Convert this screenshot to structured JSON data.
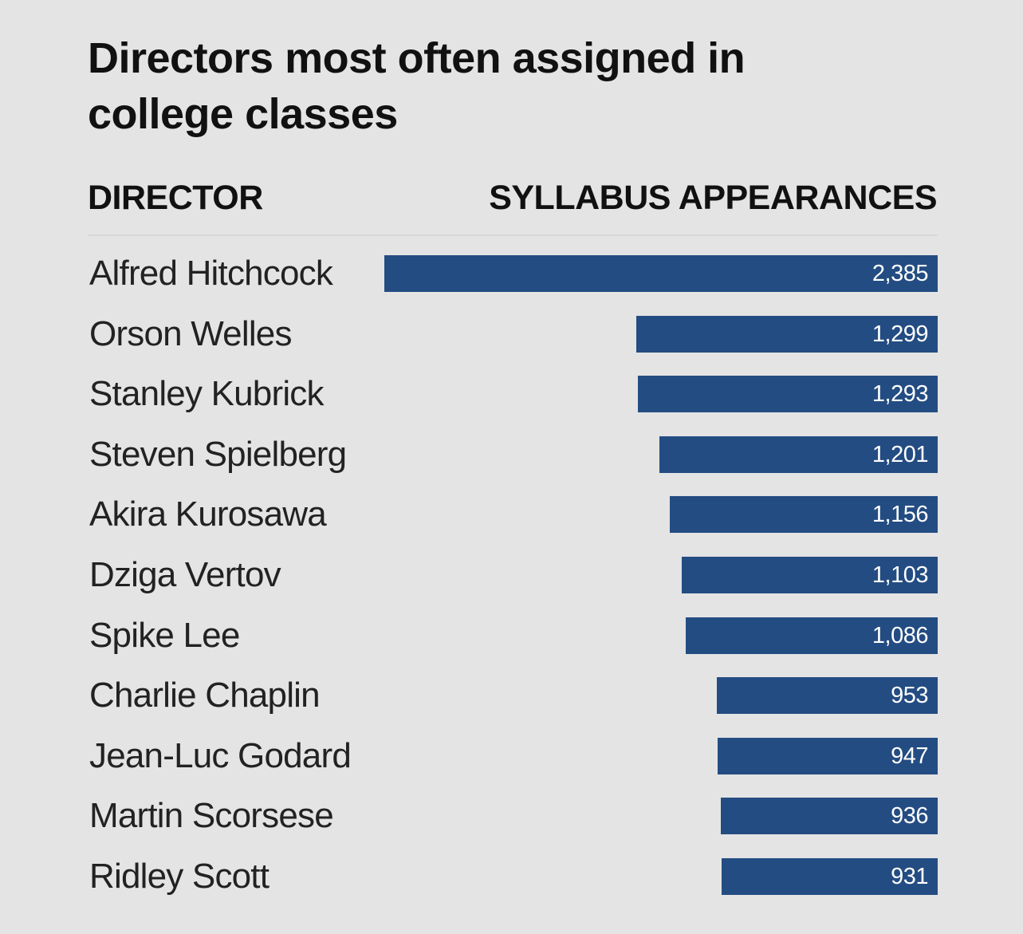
{
  "chart_data": {
    "type": "bar",
    "orientation": "horizontal",
    "title": "Directors most often assigned in college classes",
    "category_header": "DIRECTOR",
    "value_header": "SYLLABUS APPEARANCES",
    "categories": [
      "Alfred Hitchcock",
      "Orson Welles",
      "Stanley Kubrick",
      "Steven Spielberg",
      "Akira Kurosawa",
      "Dziga Vertov",
      "Spike Lee",
      "Charlie Chaplin",
      "Jean-Luc Godard",
      "Martin Scorsese",
      "Ridley Scott"
    ],
    "values": [
      2385,
      1299,
      1293,
      1201,
      1156,
      1103,
      1086,
      953,
      947,
      936,
      931
    ],
    "value_labels": [
      "2,385",
      "1,299",
      "1,293",
      "1,201",
      "1,156",
      "1,103",
      "1,086",
      "953",
      "947",
      "936",
      "931"
    ],
    "xlim": [
      0,
      2385
    ],
    "grid": false,
    "legend": "none",
    "bar_color": "#234c82",
    "background_color": "#e4e4e4"
  }
}
